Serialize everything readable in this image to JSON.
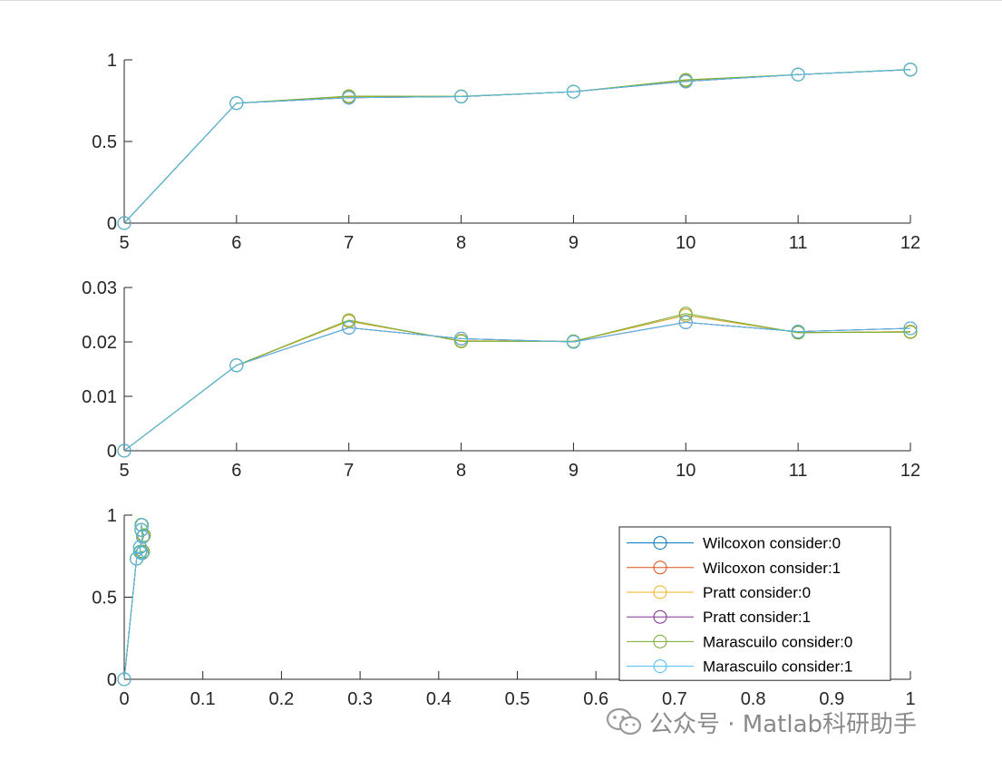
{
  "chart_data": [
    {
      "type": "line",
      "x": [
        5,
        6,
        7,
        8,
        9,
        10,
        11,
        12
      ],
      "xlim": [
        5,
        12
      ],
      "ylim": [
        0,
        1
      ],
      "xticks": [
        "5",
        "6",
        "7",
        "8",
        "9",
        "10",
        "11",
        "12"
      ],
      "yticks": [
        "0",
        "0.5",
        "1"
      ],
      "series": [
        {
          "values": [
            0,
            0.735,
            0.775,
            0.775,
            0.805,
            0.875,
            0.91,
            0.94
          ]
        },
        {
          "values": [
            0,
            0.735,
            0.768,
            0.775,
            0.805,
            0.868,
            0.91,
            0.94
          ]
        },
        {
          "values": [
            0,
            0.735,
            0.772,
            0.775,
            0.805,
            0.872,
            0.91,
            0.94
          ]
        },
        {
          "values": [
            0,
            0.735,
            0.768,
            0.775,
            0.805,
            0.868,
            0.91,
            0.94
          ]
        },
        {
          "values": [
            0,
            0.735,
            0.778,
            0.777,
            0.805,
            0.878,
            0.91,
            0.942
          ]
        },
        {
          "values": [
            0,
            0.735,
            0.768,
            0.775,
            0.805,
            0.868,
            0.91,
            0.94
          ]
        }
      ]
    },
    {
      "type": "line",
      "x": [
        5,
        6,
        7,
        8,
        9,
        10,
        11,
        12
      ],
      "xlim": [
        5,
        12
      ],
      "ylim": [
        0,
        0.03
      ],
      "xticks": [
        "5",
        "6",
        "7",
        "8",
        "9",
        "10",
        "11",
        "12"
      ],
      "yticks": [
        "0",
        "0.01",
        "0.02",
        "0.03"
      ],
      "series": [
        {
          "values": [
            0,
            0.0157,
            0.0238,
            0.0202,
            0.0201,
            0.0249,
            0.0217,
            0.0219
          ]
        },
        {
          "values": [
            0,
            0.0157,
            0.0226,
            0.0206,
            0.02,
            0.0236,
            0.0219,
            0.0225
          ]
        },
        {
          "values": [
            0,
            0.0157,
            0.0238,
            0.0202,
            0.0201,
            0.0249,
            0.0217,
            0.0219
          ]
        },
        {
          "values": [
            0,
            0.0157,
            0.0226,
            0.0206,
            0.02,
            0.0236,
            0.0219,
            0.0225
          ]
        },
        {
          "values": [
            0,
            0.0157,
            0.024,
            0.0201,
            0.0201,
            0.0252,
            0.0217,
            0.0218
          ]
        },
        {
          "values": [
            0,
            0.0157,
            0.0226,
            0.0206,
            0.02,
            0.0236,
            0.0219,
            0.0225
          ]
        }
      ]
    },
    {
      "type": "line",
      "xlim": [
        0,
        1
      ],
      "ylim": [
        0,
        1
      ],
      "xticks": [
        "0",
        "0.1",
        "0.2",
        "0.3",
        "0.4",
        "0.5",
        "0.6",
        "0.7",
        "0.8",
        "0.9",
        "1"
      ],
      "yticks": [
        "0",
        "0.5",
        "1"
      ],
      "legend_position": "top-right",
      "series": [
        {
          "name": "Wilcoxon consider:0",
          "color": "#0072BD",
          "points": [
            [
              0,
              0
            ],
            [
              0.0157,
              0.735
            ],
            [
              0.0238,
              0.775
            ],
            [
              0.0202,
              0.775
            ],
            [
              0.0201,
              0.805
            ],
            [
              0.0249,
              0.875
            ],
            [
              0.0217,
              0.91
            ],
            [
              0.0219,
              0.94
            ]
          ]
        },
        {
          "name": "Wilcoxon consider:1",
          "color": "#D95319",
          "points": [
            [
              0,
              0
            ],
            [
              0.0157,
              0.735
            ],
            [
              0.0226,
              0.768
            ],
            [
              0.0206,
              0.775
            ],
            [
              0.02,
              0.805
            ],
            [
              0.0236,
              0.868
            ],
            [
              0.0219,
              0.91
            ],
            [
              0.0225,
              0.94
            ]
          ]
        },
        {
          "name": "Pratt consider:0",
          "color": "#EDB120",
          "points": [
            [
              0,
              0
            ],
            [
              0.0157,
              0.735
            ],
            [
              0.0238,
              0.772
            ],
            [
              0.0202,
              0.775
            ],
            [
              0.0201,
              0.805
            ],
            [
              0.0249,
              0.872
            ],
            [
              0.0217,
              0.91
            ],
            [
              0.0219,
              0.94
            ]
          ]
        },
        {
          "name": "Pratt consider:1",
          "color": "#7E2F8E",
          "points": [
            [
              0,
              0
            ],
            [
              0.0157,
              0.735
            ],
            [
              0.0226,
              0.768
            ],
            [
              0.0206,
              0.775
            ],
            [
              0.02,
              0.805
            ],
            [
              0.0236,
              0.868
            ],
            [
              0.0219,
              0.91
            ],
            [
              0.0225,
              0.94
            ]
          ]
        },
        {
          "name": "Marascuilo consider:0",
          "color": "#77AC30",
          "points": [
            [
              0,
              0
            ],
            [
              0.0157,
              0.735
            ],
            [
              0.024,
              0.778
            ],
            [
              0.0201,
              0.777
            ],
            [
              0.0201,
              0.805
            ],
            [
              0.0252,
              0.878
            ],
            [
              0.0217,
              0.91
            ],
            [
              0.0218,
              0.942
            ]
          ]
        },
        {
          "name": "Marascuilo consider:1",
          "color": "#4DBEEE",
          "points": [
            [
              0,
              0
            ],
            [
              0.0157,
              0.735
            ],
            [
              0.0226,
              0.768
            ],
            [
              0.0206,
              0.775
            ],
            [
              0.02,
              0.805
            ],
            [
              0.0236,
              0.868
            ],
            [
              0.0219,
              0.91
            ],
            [
              0.0225,
              0.94
            ]
          ]
        }
      ]
    }
  ],
  "watermark": {
    "icon": "wechat-icon",
    "text": "公众号 · Matlab科研助手"
  }
}
